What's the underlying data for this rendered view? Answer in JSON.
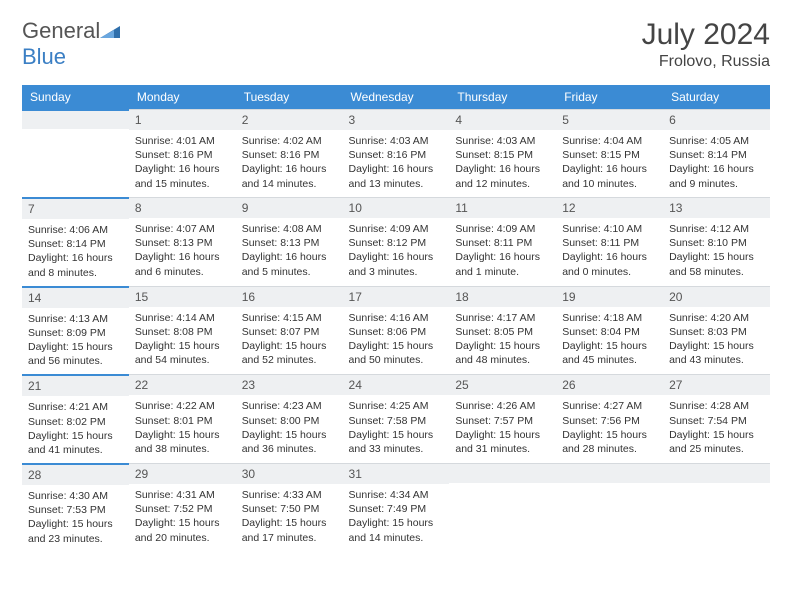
{
  "logo": {
    "part1": "General",
    "part2": "Blue"
  },
  "title": "July 2024",
  "location": "Frolovo, Russia",
  "weekdays": [
    "Sunday",
    "Monday",
    "Tuesday",
    "Wednesday",
    "Thursday",
    "Friday",
    "Saturday"
  ],
  "colors": {
    "header_bg": "#3b8bd4",
    "header_text": "#ffffff",
    "daynum_bg": "#eef0f2",
    "body_text": "#333333",
    "logo_gray": "#555555",
    "logo_blue": "#3b7fc4"
  },
  "days": [
    {
      "n": "",
      "sunrise": "",
      "sunset": "",
      "daylight": ""
    },
    {
      "n": "1",
      "sunrise": "Sunrise: 4:01 AM",
      "sunset": "Sunset: 8:16 PM",
      "daylight": "Daylight: 16 hours and 15 minutes."
    },
    {
      "n": "2",
      "sunrise": "Sunrise: 4:02 AM",
      "sunset": "Sunset: 8:16 PM",
      "daylight": "Daylight: 16 hours and 14 minutes."
    },
    {
      "n": "3",
      "sunrise": "Sunrise: 4:03 AM",
      "sunset": "Sunset: 8:16 PM",
      "daylight": "Daylight: 16 hours and 13 minutes."
    },
    {
      "n": "4",
      "sunrise": "Sunrise: 4:03 AM",
      "sunset": "Sunset: 8:15 PM",
      "daylight": "Daylight: 16 hours and 12 minutes."
    },
    {
      "n": "5",
      "sunrise": "Sunrise: 4:04 AM",
      "sunset": "Sunset: 8:15 PM",
      "daylight": "Daylight: 16 hours and 10 minutes."
    },
    {
      "n": "6",
      "sunrise": "Sunrise: 4:05 AM",
      "sunset": "Sunset: 8:14 PM",
      "daylight": "Daylight: 16 hours and 9 minutes."
    },
    {
      "n": "7",
      "sunrise": "Sunrise: 4:06 AM",
      "sunset": "Sunset: 8:14 PM",
      "daylight": "Daylight: 16 hours and 8 minutes."
    },
    {
      "n": "8",
      "sunrise": "Sunrise: 4:07 AM",
      "sunset": "Sunset: 8:13 PM",
      "daylight": "Daylight: 16 hours and 6 minutes."
    },
    {
      "n": "9",
      "sunrise": "Sunrise: 4:08 AM",
      "sunset": "Sunset: 8:13 PM",
      "daylight": "Daylight: 16 hours and 5 minutes."
    },
    {
      "n": "10",
      "sunrise": "Sunrise: 4:09 AM",
      "sunset": "Sunset: 8:12 PM",
      "daylight": "Daylight: 16 hours and 3 minutes."
    },
    {
      "n": "11",
      "sunrise": "Sunrise: 4:09 AM",
      "sunset": "Sunset: 8:11 PM",
      "daylight": "Daylight: 16 hours and 1 minute."
    },
    {
      "n": "12",
      "sunrise": "Sunrise: 4:10 AM",
      "sunset": "Sunset: 8:11 PM",
      "daylight": "Daylight: 16 hours and 0 minutes."
    },
    {
      "n": "13",
      "sunrise": "Sunrise: 4:12 AM",
      "sunset": "Sunset: 8:10 PM",
      "daylight": "Daylight: 15 hours and 58 minutes."
    },
    {
      "n": "14",
      "sunrise": "Sunrise: 4:13 AM",
      "sunset": "Sunset: 8:09 PM",
      "daylight": "Daylight: 15 hours and 56 minutes."
    },
    {
      "n": "15",
      "sunrise": "Sunrise: 4:14 AM",
      "sunset": "Sunset: 8:08 PM",
      "daylight": "Daylight: 15 hours and 54 minutes."
    },
    {
      "n": "16",
      "sunrise": "Sunrise: 4:15 AM",
      "sunset": "Sunset: 8:07 PM",
      "daylight": "Daylight: 15 hours and 52 minutes."
    },
    {
      "n": "17",
      "sunrise": "Sunrise: 4:16 AM",
      "sunset": "Sunset: 8:06 PM",
      "daylight": "Daylight: 15 hours and 50 minutes."
    },
    {
      "n": "18",
      "sunrise": "Sunrise: 4:17 AM",
      "sunset": "Sunset: 8:05 PM",
      "daylight": "Daylight: 15 hours and 48 minutes."
    },
    {
      "n": "19",
      "sunrise": "Sunrise: 4:18 AM",
      "sunset": "Sunset: 8:04 PM",
      "daylight": "Daylight: 15 hours and 45 minutes."
    },
    {
      "n": "20",
      "sunrise": "Sunrise: 4:20 AM",
      "sunset": "Sunset: 8:03 PM",
      "daylight": "Daylight: 15 hours and 43 minutes."
    },
    {
      "n": "21",
      "sunrise": "Sunrise: 4:21 AM",
      "sunset": "Sunset: 8:02 PM",
      "daylight": "Daylight: 15 hours and 41 minutes."
    },
    {
      "n": "22",
      "sunrise": "Sunrise: 4:22 AM",
      "sunset": "Sunset: 8:01 PM",
      "daylight": "Daylight: 15 hours and 38 minutes."
    },
    {
      "n": "23",
      "sunrise": "Sunrise: 4:23 AM",
      "sunset": "Sunset: 8:00 PM",
      "daylight": "Daylight: 15 hours and 36 minutes."
    },
    {
      "n": "24",
      "sunrise": "Sunrise: 4:25 AM",
      "sunset": "Sunset: 7:58 PM",
      "daylight": "Daylight: 15 hours and 33 minutes."
    },
    {
      "n": "25",
      "sunrise": "Sunrise: 4:26 AM",
      "sunset": "Sunset: 7:57 PM",
      "daylight": "Daylight: 15 hours and 31 minutes."
    },
    {
      "n": "26",
      "sunrise": "Sunrise: 4:27 AM",
      "sunset": "Sunset: 7:56 PM",
      "daylight": "Daylight: 15 hours and 28 minutes."
    },
    {
      "n": "27",
      "sunrise": "Sunrise: 4:28 AM",
      "sunset": "Sunset: 7:54 PM",
      "daylight": "Daylight: 15 hours and 25 minutes."
    },
    {
      "n": "28",
      "sunrise": "Sunrise: 4:30 AM",
      "sunset": "Sunset: 7:53 PM",
      "daylight": "Daylight: 15 hours and 23 minutes."
    },
    {
      "n": "29",
      "sunrise": "Sunrise: 4:31 AM",
      "sunset": "Sunset: 7:52 PM",
      "daylight": "Daylight: 15 hours and 20 minutes."
    },
    {
      "n": "30",
      "sunrise": "Sunrise: 4:33 AM",
      "sunset": "Sunset: 7:50 PM",
      "daylight": "Daylight: 15 hours and 17 minutes."
    },
    {
      "n": "31",
      "sunrise": "Sunrise: 4:34 AM",
      "sunset": "Sunset: 7:49 PM",
      "daylight": "Daylight: 15 hours and 14 minutes."
    },
    {
      "n": "",
      "sunrise": "",
      "sunset": "",
      "daylight": ""
    },
    {
      "n": "",
      "sunrise": "",
      "sunset": "",
      "daylight": ""
    },
    {
      "n": "",
      "sunrise": "",
      "sunset": "",
      "daylight": ""
    }
  ]
}
